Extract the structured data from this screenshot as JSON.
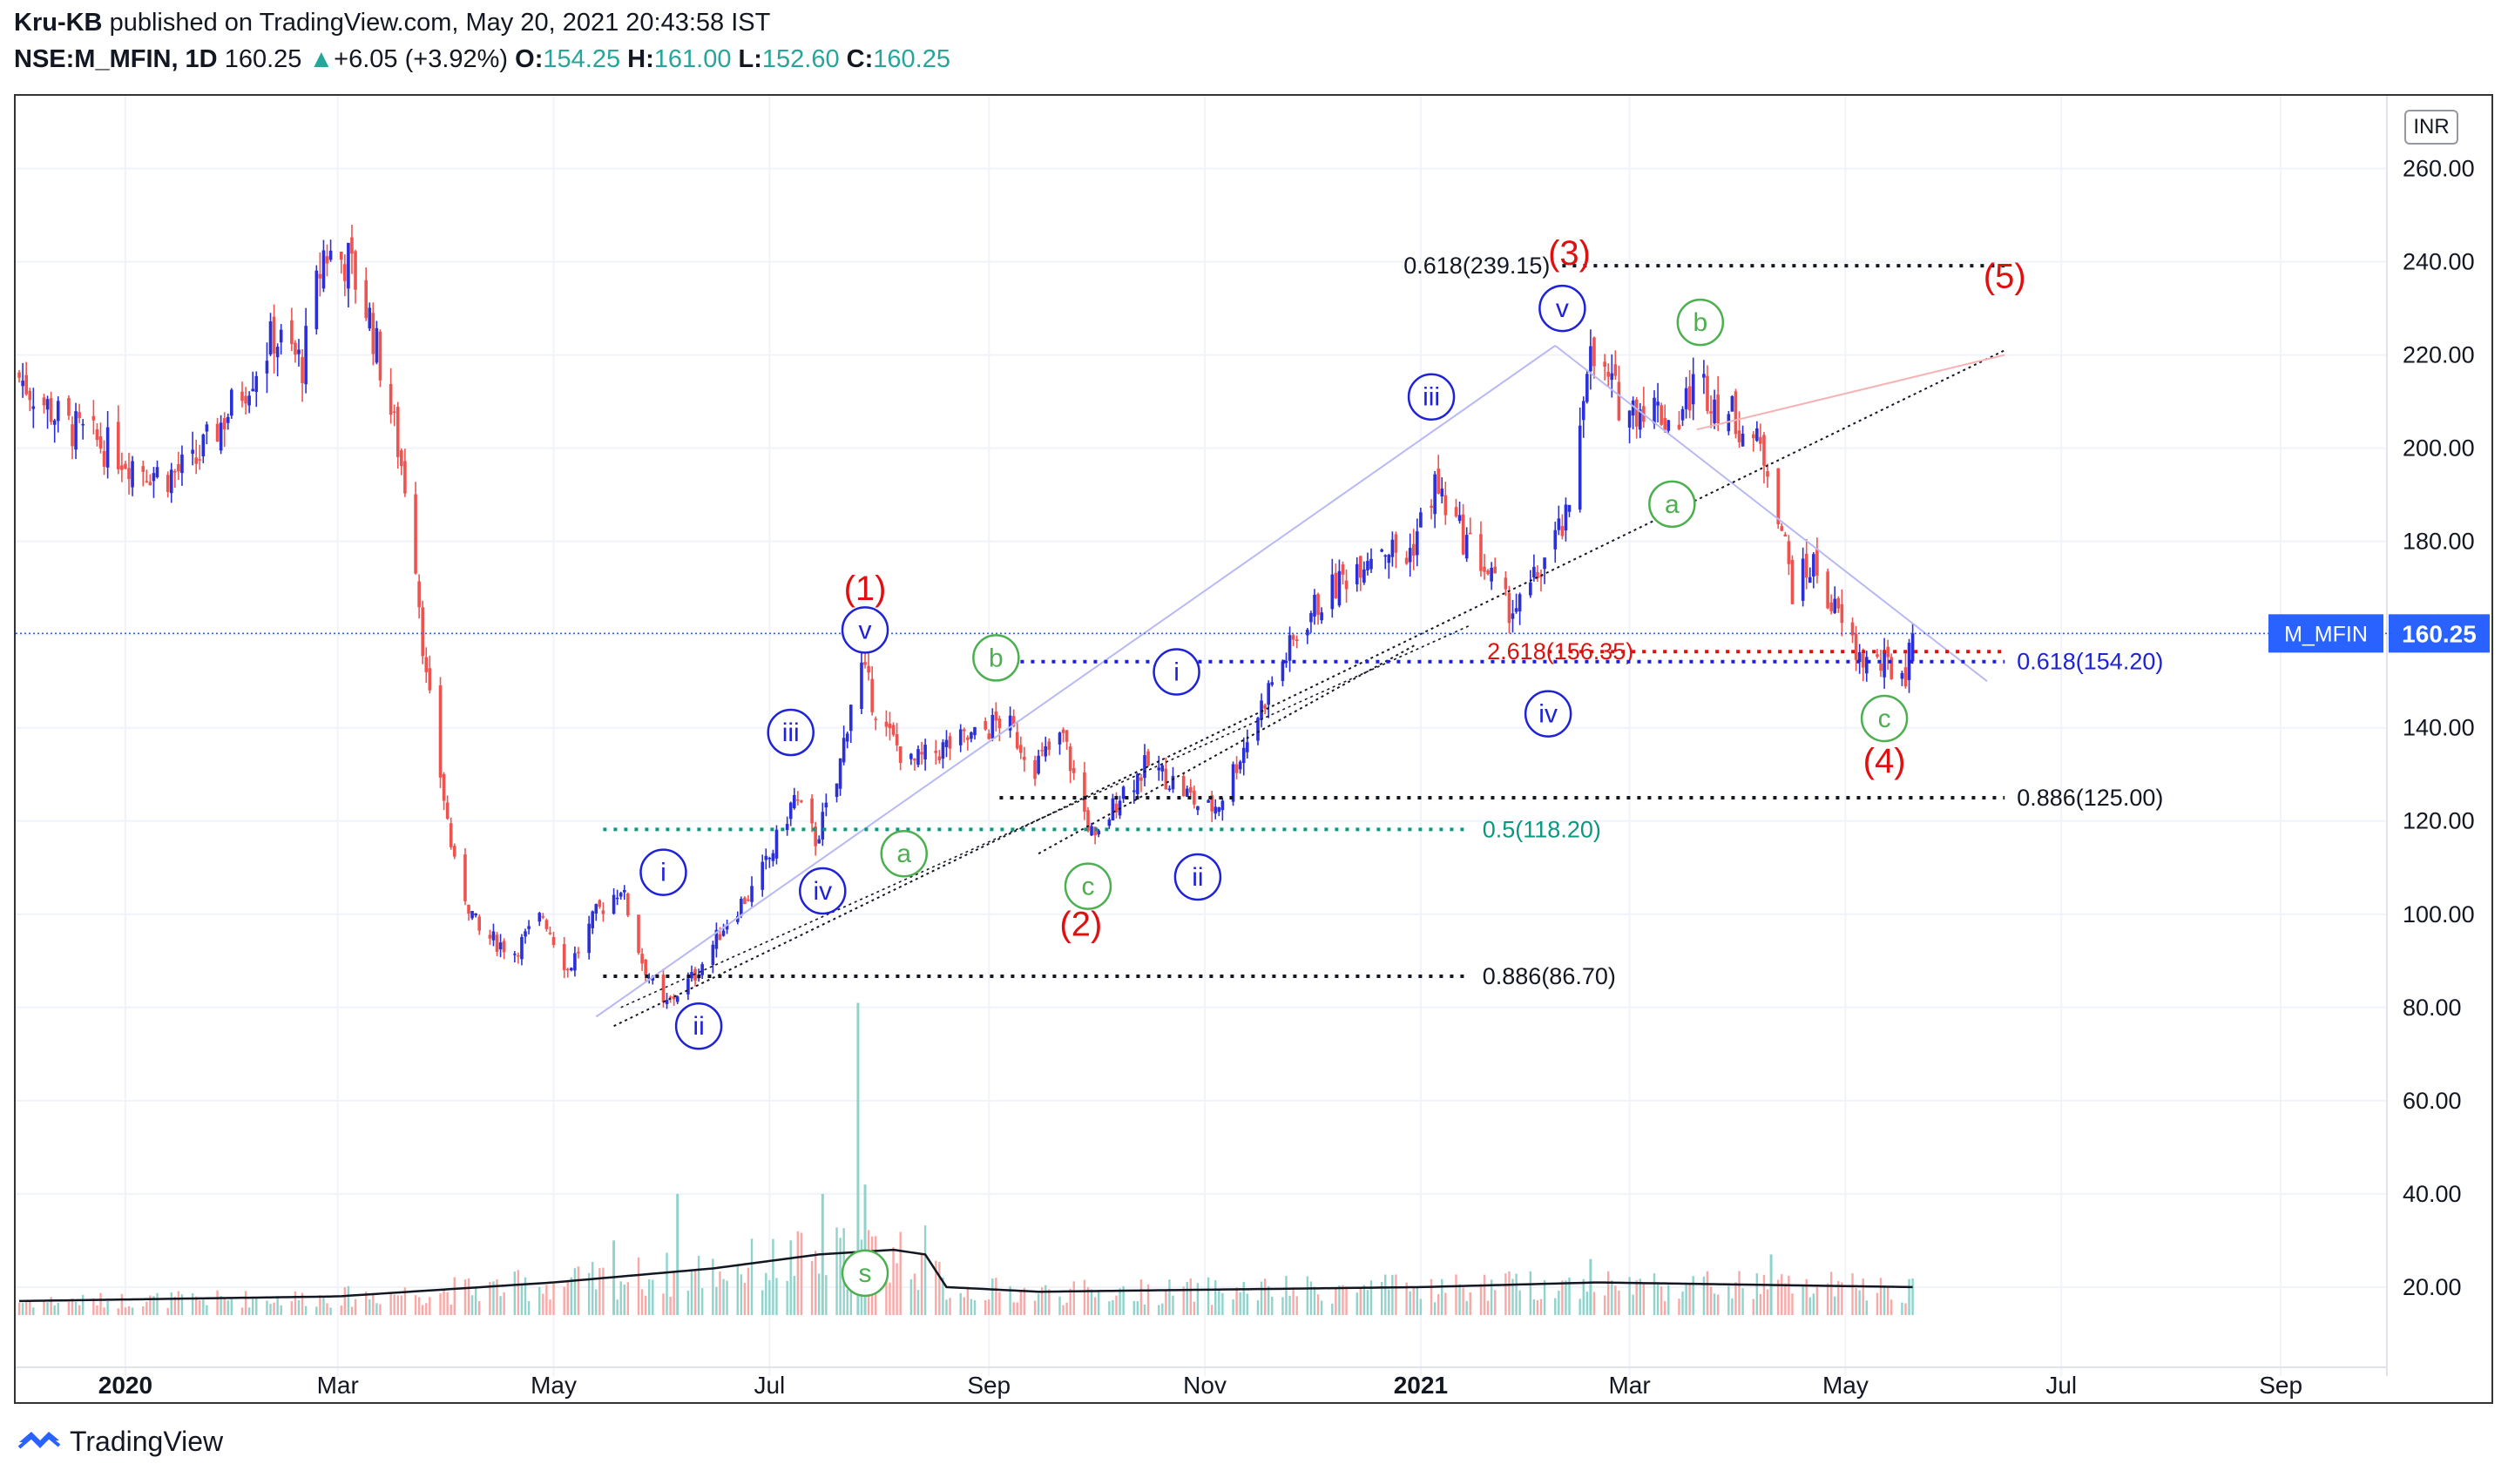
{
  "header": {
    "author": "Kru-KB",
    "published": "published on TradingView.com, May 20, 2021 20:43:58 IST",
    "symbol": "NSE:M_MFIN, 1D",
    "last": "160.25",
    "change_arrow": "▲",
    "change": "+6.05 (+3.92%)",
    "o_label": "O:",
    "o": "154.25",
    "h_label": "H:",
    "h": "161.00",
    "l_label": "L:",
    "l": "152.60",
    "c_label": "C:",
    "c": "160.25"
  },
  "currency": "INR",
  "price_tag": {
    "symbol": "M_MFIN",
    "value": "160.25"
  },
  "footer": {
    "brand": "TradingView",
    "icon": "tradingview-logo-icon"
  },
  "colors": {
    "up": "#26a69a",
    "down": "#ef5350",
    "blue": "#1e22d8",
    "red": "#e01010",
    "green": "#4caf50",
    "tag": "#2962ff",
    "teal": "#089981"
  },
  "chart_data": {
    "type": "candlestick",
    "title": "NSE:M_MFIN, 1D",
    "currency": "INR",
    "ylim": [
      14,
      270
    ],
    "y_ticks": [
      20,
      40,
      60,
      80,
      100,
      120,
      140,
      160,
      180,
      200,
      220,
      240,
      260
    ],
    "y_tick_labels": [
      "20.00",
      "40.00",
      "60.00",
      "80.00",
      "100.00",
      "120.00",
      "140.00",
      "160.00",
      "180.00",
      "200.00",
      "220.00",
      "240.00",
      "260.00"
    ],
    "x_range": [
      "2019-12-01",
      "2021-10-01"
    ],
    "x_ticks": [
      {
        "date": "2020-01-01",
        "label": "2020",
        "bold": true
      },
      {
        "date": "2020-03-01",
        "label": "Mar"
      },
      {
        "date": "2020-05-01",
        "label": "May"
      },
      {
        "date": "2020-07-01",
        "label": "Jul"
      },
      {
        "date": "2020-09-01",
        "label": "Sep"
      },
      {
        "date": "2020-11-01",
        "label": "Nov"
      },
      {
        "date": "2021-01-01",
        "label": "2021",
        "bold": true
      },
      {
        "date": "2021-03-01",
        "label": "Mar"
      },
      {
        "date": "2021-05-01",
        "label": "May"
      },
      {
        "date": "2021-07-01",
        "label": "Jul"
      },
      {
        "date": "2021-09-01",
        "label": "Sep"
      }
    ],
    "price_path": [
      [
        "2019-12-01",
        216
      ],
      [
        "2019-12-15",
        205
      ],
      [
        "2020-01-01",
        198
      ],
      [
        "2020-01-12",
        194
      ],
      [
        "2020-01-20",
        196
      ],
      [
        "2020-02-01",
        210
      ],
      [
        "2020-02-12",
        224
      ],
      [
        "2020-02-20",
        218
      ],
      [
        "2020-02-26",
        242
      ],
      [
        "2020-03-04",
        240
      ],
      [
        "2020-03-10",
        228
      ],
      [
        "2020-03-16",
        208
      ],
      [
        "2020-03-22",
        185
      ],
      [
        "2020-03-26",
        150
      ],
      [
        "2020-04-03",
        110
      ],
      [
        "2020-04-10",
        96
      ],
      [
        "2020-04-20",
        92
      ],
      [
        "2020-04-28",
        100
      ],
      [
        "2020-05-05",
        88
      ],
      [
        "2020-05-13",
        100
      ],
      [
        "2020-05-20",
        106
      ],
      [
        "2020-05-26",
        90
      ],
      [
        "2020-06-01",
        80
      ],
      [
        "2020-06-10",
        87
      ],
      [
        "2020-06-20",
        100
      ],
      [
        "2020-06-26",
        105
      ],
      [
        "2020-07-01",
        112
      ],
      [
        "2020-07-08",
        125
      ],
      [
        "2020-07-14",
        116
      ],
      [
        "2020-07-20",
        128
      ],
      [
        "2020-07-26",
        155
      ],
      [
        "2020-08-02",
        140
      ],
      [
        "2020-08-10",
        132
      ],
      [
        "2020-08-20",
        136
      ],
      [
        "2020-08-28",
        138
      ],
      [
        "2020-09-05",
        142
      ],
      [
        "2020-09-14",
        132
      ],
      [
        "2020-09-22",
        138
      ],
      [
        "2020-09-27",
        124
      ],
      [
        "2020-10-01",
        115
      ],
      [
        "2020-10-08",
        126
      ],
      [
        "2020-10-16",
        132
      ],
      [
        "2020-10-24",
        128
      ],
      [
        "2020-11-01",
        122
      ],
      [
        "2020-11-05",
        124
      ],
      [
        "2020-11-12",
        136
      ],
      [
        "2020-11-20",
        150
      ],
      [
        "2020-12-01",
        165
      ],
      [
        "2020-12-10",
        172
      ],
      [
        "2020-12-20",
        180
      ],
      [
        "2020-12-28",
        176
      ],
      [
        "2021-01-05",
        192
      ],
      [
        "2021-01-12",
        182
      ],
      [
        "2021-01-18",
        176
      ],
      [
        "2021-01-25",
        166
      ],
      [
        "2021-01-30",
        166
      ],
      [
        "2021-02-06",
        178
      ],
      [
        "2021-02-12",
        185
      ],
      [
        "2021-02-17",
        220
      ],
      [
        "2021-02-22",
        215
      ],
      [
        "2021-02-28",
        208
      ],
      [
        "2021-03-06",
        210
      ],
      [
        "2021-03-14",
        205
      ],
      [
        "2021-03-20",
        215
      ],
      [
        "2021-03-26",
        210
      ],
      [
        "2021-04-03",
        204
      ],
      [
        "2021-04-10",
        196
      ],
      [
        "2021-04-16",
        170
      ],
      [
        "2021-04-22",
        175
      ],
      [
        "2021-04-28",
        165
      ],
      [
        "2021-05-05",
        155
      ],
      [
        "2021-05-12",
        153
      ],
      [
        "2021-05-18",
        152
      ],
      [
        "2021-05-20",
        160.25
      ]
    ],
    "volume_avg_path": [
      [
        "2019-12-01",
        17
      ],
      [
        "2020-03-01",
        18
      ],
      [
        "2020-05-01",
        21
      ],
      [
        "2020-06-15",
        24
      ],
      [
        "2020-07-15",
        27
      ],
      [
        "2020-08-05",
        28
      ],
      [
        "2020-08-14",
        27
      ],
      [
        "2020-08-20",
        20
      ],
      [
        "2020-09-15",
        19
      ],
      [
        "2021-01-01",
        20
      ],
      [
        "2021-02-20",
        21
      ],
      [
        "2021-05-20",
        20
      ]
    ],
    "volume_spikes": [
      [
        "2020-07-26",
        81
      ],
      [
        "2020-06-05",
        40
      ],
      [
        "2020-07-16",
        40
      ],
      [
        "2020-07-28",
        42
      ],
      [
        "2020-05-18",
        30
      ],
      [
        "2021-04-10",
        27
      ],
      [
        "2021-02-18",
        26
      ]
    ],
    "wave_labels": [
      {
        "text": "(1)",
        "date": "2020-07-28",
        "price": 170,
        "style": "red-plain"
      },
      {
        "text": "(2)",
        "date": "2020-09-27",
        "price": 98,
        "style": "red-plain"
      },
      {
        "text": "(3)",
        "date": "2021-02-12",
        "price": 242,
        "style": "red-plain"
      },
      {
        "text": "(4)",
        "date": "2021-05-12",
        "price": 133,
        "style": "red-plain"
      },
      {
        "text": "(5)",
        "date": "2021-06-15",
        "price": 237,
        "style": "red-plain"
      },
      {
        "text": "i",
        "date": "2020-06-01",
        "price": 109,
        "style": "blue-circle"
      },
      {
        "text": "ii",
        "date": "2020-06-11",
        "price": 76,
        "style": "blue-circle"
      },
      {
        "text": "iii",
        "date": "2020-07-07",
        "price": 139,
        "style": "blue-circle"
      },
      {
        "text": "iv",
        "date": "2020-07-16",
        "price": 105,
        "style": "blue-circle"
      },
      {
        "text": "v",
        "date": "2020-07-28",
        "price": 161,
        "style": "blue-circle"
      },
      {
        "text": "i",
        "date": "2020-10-24",
        "price": 152,
        "style": "blue-circle"
      },
      {
        "text": "ii",
        "date": "2020-10-30",
        "price": 108,
        "style": "blue-circle"
      },
      {
        "text": "iii",
        "date": "2021-01-04",
        "price": 211,
        "style": "blue-circle"
      },
      {
        "text": "iv",
        "date": "2021-02-06",
        "price": 143,
        "style": "blue-circle"
      },
      {
        "text": "v",
        "date": "2021-02-10",
        "price": 230,
        "style": "blue-circle"
      },
      {
        "text": "b",
        "date": "2020-09-03",
        "price": 155,
        "style": "green-circle"
      },
      {
        "text": "a",
        "date": "2020-08-08",
        "price": 113,
        "style": "green-circle"
      },
      {
        "text": "c",
        "date": "2020-09-29",
        "price": 106,
        "style": "green-circle"
      },
      {
        "text": "b",
        "date": "2021-03-21",
        "price": 227,
        "style": "green-circle"
      },
      {
        "text": "a",
        "date": "2021-03-13",
        "price": 188,
        "style": "green-circle"
      },
      {
        "text": "c",
        "date": "2021-05-12",
        "price": 142,
        "style": "green-circle"
      },
      {
        "text": "s",
        "date": "2020-07-28",
        "price": 23,
        "style": "green-circle"
      }
    ],
    "levels": [
      {
        "label": "0.618(239.15)",
        "price": 239.15,
        "from": "2021-02-10",
        "to": "2021-06-15",
        "label_side": "left",
        "color": "#131722"
      },
      {
        "label": "2.618(156.35)",
        "price": 156.35,
        "from": "2021-02-06",
        "to": "2021-06-15",
        "label_side": "on-line-left",
        "color": "#e01010"
      },
      {
        "label": "0.618(154.20)",
        "price": 154.2,
        "from": "2020-09-04",
        "to": "2021-06-15",
        "label_side": "right",
        "color": "#1e22d8"
      },
      {
        "label": "0.886(125.00)",
        "price": 125.0,
        "from": "2020-09-04",
        "to": "2021-06-15",
        "label_side": "right",
        "color": "#131722"
      },
      {
        "label": "0.5(118.20)",
        "price": 118.2,
        "from": "2020-05-15",
        "to": "2021-01-15",
        "label_side": "right",
        "color": "#089981"
      },
      {
        "label": "0.886(86.70)",
        "price": 86.7,
        "from": "2020-05-15",
        "to": "2021-01-15",
        "label_side": "right",
        "color": "#131722"
      }
    ],
    "trend_lines": [
      {
        "from": [
          "2020-05-13",
          78
        ],
        "to": [
          "2021-02-08",
          222
        ],
        "style": "solid-lavender"
      },
      {
        "from": [
          "2021-02-08",
          222
        ],
        "to": [
          "2021-06-10",
          150
        ],
        "style": "solid-lavender"
      },
      {
        "from": [
          "2020-05-18",
          76
        ],
        "to": [
          "2021-06-15",
          221
        ],
        "style": "dotted-black"
      },
      {
        "from": [
          "2020-09-15",
          113
        ],
        "to": [
          "2020-12-31",
          158
        ],
        "style": "dotted-black"
      },
      {
        "from": [
          "2021-03-20",
          204
        ],
        "to": [
          "2021-06-15",
          220
        ],
        "style": "solid-pink"
      }
    ],
    "current_price_line": 160.25
  }
}
